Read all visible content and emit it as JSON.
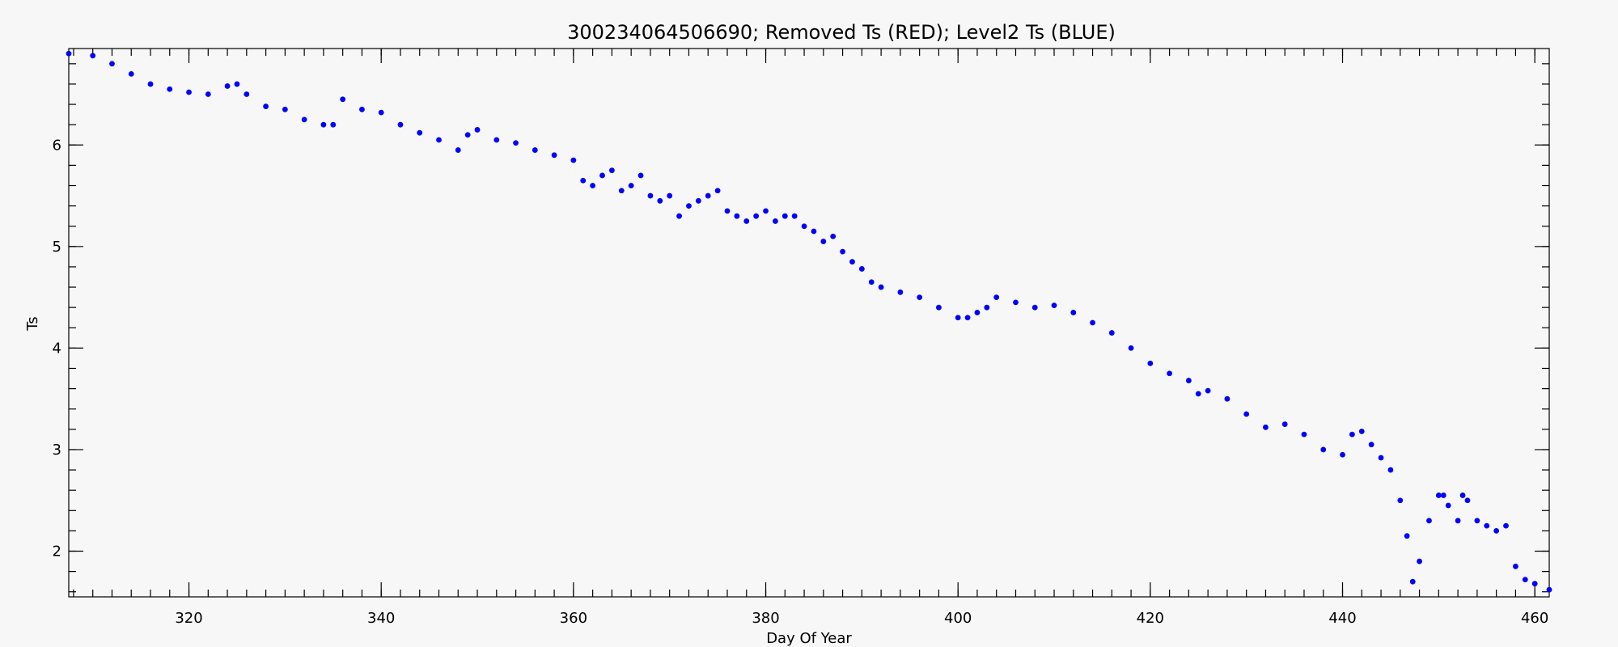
{
  "chart_data": {
    "type": "scatter",
    "title": "300234064506690; Removed Ts (RED); Level2 Ts (BLUE)",
    "xlabel": "Day Of Year",
    "ylabel": "Ts",
    "xlim": [
      307.5,
      461.5
    ],
    "ylim": [
      1.55,
      6.95
    ],
    "x_ticks": [
      320,
      340,
      360,
      380,
      400,
      420,
      440,
      460
    ],
    "y_ticks": [
      2,
      3,
      4,
      5,
      6
    ],
    "x_minor_step": 2,
    "y_minor_step": 0.2,
    "grid": false,
    "legend": "none",
    "series": [
      {
        "name": "Level2 Ts (BLUE)",
        "color": "#0000ff",
        "x": [
          307.5,
          310,
          312,
          314,
          316,
          318,
          320,
          322,
          324,
          325,
          326,
          328,
          330,
          332,
          334,
          335,
          336,
          338,
          340,
          342,
          344,
          346,
          348,
          349,
          350,
          352,
          354,
          356,
          358,
          360,
          361,
          362,
          363,
          364,
          365,
          366,
          367,
          368,
          369,
          370,
          371,
          372,
          373,
          374,
          375,
          376,
          377,
          378,
          379,
          380,
          381,
          382,
          383,
          384,
          385,
          386,
          387,
          388,
          389,
          390,
          391,
          392,
          394,
          396,
          398,
          400,
          401,
          402,
          403,
          404,
          406,
          408,
          410,
          412,
          414,
          416,
          418,
          420,
          422,
          424,
          425,
          426,
          428,
          430,
          432,
          434,
          436,
          438,
          440,
          441,
          442,
          443,
          444,
          445,
          446,
          446.7,
          447.3,
          448,
          449,
          450,
          450.5,
          451,
          452,
          452.5,
          453,
          454,
          455,
          456,
          457,
          458,
          459,
          460,
          461.5
        ],
        "y": [
          6.9,
          6.88,
          6.8,
          6.7,
          6.6,
          6.55,
          6.52,
          6.5,
          6.58,
          6.6,
          6.5,
          6.38,
          6.35,
          6.25,
          6.2,
          6.2,
          6.45,
          6.35,
          6.32,
          6.2,
          6.12,
          6.05,
          5.95,
          6.1,
          6.15,
          6.05,
          6.02,
          5.95,
          5.9,
          5.85,
          5.65,
          5.6,
          5.7,
          5.75,
          5.55,
          5.6,
          5.7,
          5.5,
          5.45,
          5.5,
          5.3,
          5.4,
          5.45,
          5.5,
          5.55,
          5.35,
          5.3,
          5.25,
          5.3,
          5.35,
          5.25,
          5.3,
          5.3,
          5.2,
          5.15,
          5.05,
          5.1,
          4.95,
          4.85,
          4.78,
          4.65,
          4.6,
          4.55,
          4.5,
          4.4,
          4.3,
          4.3,
          4.35,
          4.4,
          4.5,
          4.45,
          4.4,
          4.42,
          4.35,
          4.25,
          4.15,
          4.0,
          3.85,
          3.75,
          3.68,
          3.55,
          3.58,
          3.5,
          3.35,
          3.22,
          3.25,
          3.15,
          3.0,
          2.95,
          3.15,
          3.18,
          3.05,
          2.92,
          2.8,
          2.5,
          2.15,
          1.7,
          1.9,
          2.3,
          2.55,
          2.55,
          2.45,
          2.3,
          2.55,
          2.5,
          2.3,
          2.25,
          2.2,
          2.25,
          1.85,
          1.72,
          1.68,
          1.62
        ]
      },
      {
        "name": "Removed Ts (RED)",
        "color": "#ff0000",
        "x": [],
        "y": []
      }
    ]
  }
}
